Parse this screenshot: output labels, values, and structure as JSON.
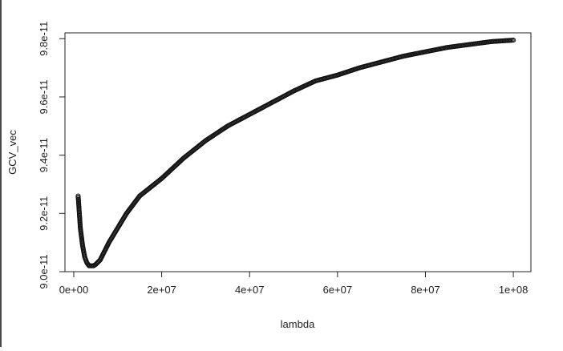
{
  "chart_data": {
    "type": "scatter",
    "title": "",
    "xlabel": "lambda",
    "ylabel": "GCV_vec",
    "xlim": [
      -2000000,
      104000000
    ],
    "ylim": [
      9e-11,
      9.82e-11
    ],
    "x_ticks": [
      {
        "value": 0,
        "label": "0e+00"
      },
      {
        "value": 20000000,
        "label": "2e+07"
      },
      {
        "value": 40000000,
        "label": "4e+07"
      },
      {
        "value": 60000000,
        "label": "6e+07"
      },
      {
        "value": 80000000,
        "label": "8e+07"
      },
      {
        "value": 100000000,
        "label": "1e+08"
      }
    ],
    "y_ticks": [
      {
        "value": 9e-11,
        "label": "9.0e-11"
      },
      {
        "value": 9.2e-11,
        "label": "9.2e-11"
      },
      {
        "value": 9.4e-11,
        "label": "9.4e-11"
      },
      {
        "value": 9.6e-11,
        "label": "9.6e-11"
      },
      {
        "value": 9.8e-11,
        "label": "9.8e-11"
      }
    ],
    "marker": "open-circle",
    "marker_color": "#111111",
    "grid": false,
    "legend": "none",
    "series": [
      {
        "x": [
          1000000,
          1500000,
          2000000,
          2500000,
          3000000,
          3500000,
          4000000,
          4500000,
          5000000,
          6000000,
          7000000,
          8000000,
          10000000,
          12000000,
          15000000,
          20000000,
          25000000,
          30000000,
          35000000,
          40000000,
          45000000,
          50000000,
          55000000,
          60000000,
          65000000,
          70000000,
          75000000,
          80000000,
          85000000,
          90000000,
          95000000,
          100000000
        ],
        "y": [
          9.26e-11,
          9.15e-11,
          9.09e-11,
          9.05e-11,
          9.03e-11,
          9.02e-11,
          9.02e-11,
          9.02e-11,
          9.025e-11,
          9.04e-11,
          9.07e-11,
          9.1e-11,
          9.15e-11,
          9.2e-11,
          9.26e-11,
          9.32e-11,
          9.39e-11,
          9.45e-11,
          9.5e-11,
          9.54e-11,
          9.58e-11,
          9.62e-11,
          9.655e-11,
          9.675e-11,
          9.7e-11,
          9.72e-11,
          9.74e-11,
          9.755e-11,
          9.77e-11,
          9.78e-11,
          9.79e-11,
          9.795e-11
        ]
      }
    ]
  }
}
